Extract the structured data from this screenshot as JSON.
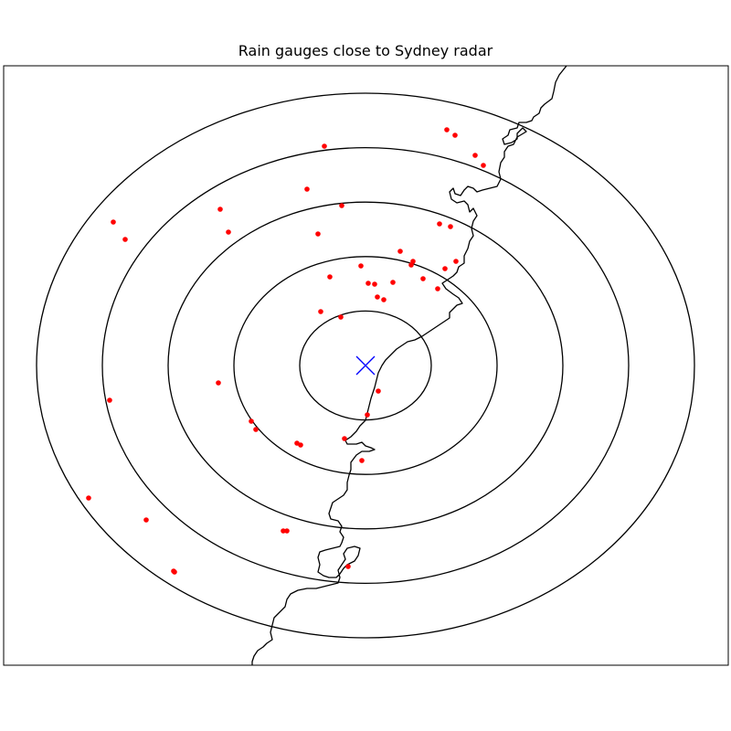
{
  "title": "Rain gauges close to Sydney radar",
  "colors": {
    "gauge": "#ff0000",
    "radar_marker": "#0000ff",
    "range_rings": "#000000",
    "coastline": "#000000",
    "frame": "#000000"
  },
  "radar": {
    "marker": "x-cross-icon",
    "range_ring_count": 5
  },
  "gauge_count": 52,
  "legend": "none",
  "map_features": [
    "coastline",
    "range-rings",
    "radar-site",
    "rain-gauges"
  ]
}
